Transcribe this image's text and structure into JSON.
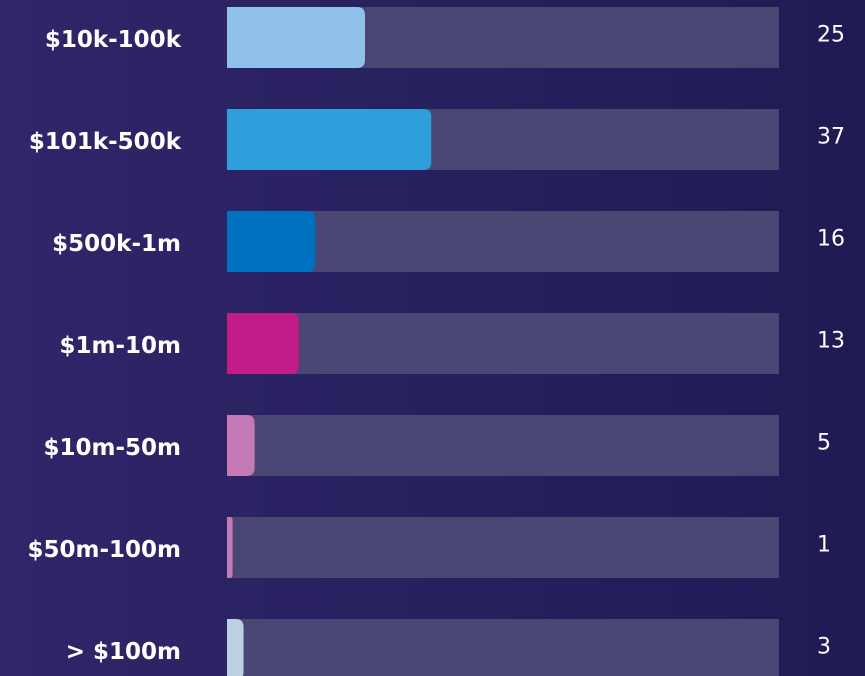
{
  "chart_data": {
    "type": "bar",
    "orientation": "horizontal",
    "categories": [
      "$10k-100k",
      "$101k-500k",
      "$500k-1m",
      "$1m-10m",
      "$10m-50m",
      "$50m-100m",
      "> $100m"
    ],
    "values": [
      25,
      37,
      16,
      13,
      5,
      1,
      3
    ],
    "colors": [
      "#8fc1ea",
      "#2f9fdb",
      "#0070c0",
      "#c21c8b",
      "#c47ab5",
      "#c47ab5",
      "#bcd0e3"
    ],
    "xlim": [
      0,
      100
    ]
  }
}
